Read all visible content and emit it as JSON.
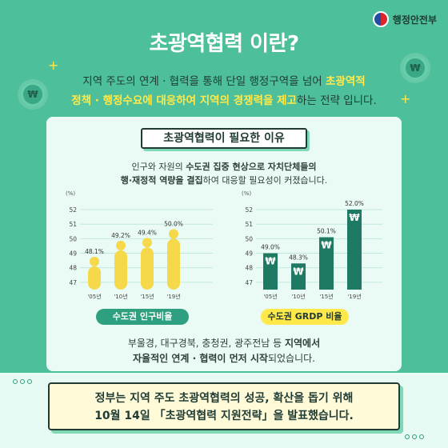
{
  "header": {
    "ministry": "행정안전부",
    "title": "초광역협력 이란?"
  },
  "intro": {
    "line1_a": "지역 주도의 연계 · 협력을 통해 단일 행정구역을 넘어 ",
    "line1_hl": "초광역적",
    "line2_hl1": "정책 · 행정수요에 대응하여 지역의 경쟁력을 제고",
    "line2_b": "하는 전략 입니다."
  },
  "card": {
    "title": "초광역협력이 필요한 이유",
    "desc_line1_a": "인구와 자원의 ",
    "desc_line1_b": "수도권 집중 현상으로 자치단체들의",
    "desc_line2_b": "행·재정적 역량을 결집",
    "desc_line2_c": "하여 대응할 필요성이 커졌습니다.",
    "foot_line1_a": "부울경, 대구경북, 충청권, 광주전남 등 ",
    "foot_line1_b": "지역에서",
    "foot_line2_a": "자율적인 연계 · 협력이 먼저 시작",
    "foot_line2_b": "되었습니다."
  },
  "chart_data": [
    {
      "type": "bar",
      "title": "수도권 인구비율",
      "ylabel": "(%)",
      "ylim": [
        46.5,
        52
      ],
      "yticks": [
        47,
        48,
        49,
        50,
        51,
        52
      ],
      "categories": [
        "'05년",
        "'10년",
        "'15년",
        "'19년"
      ],
      "values": [
        48.1,
        49.2,
        49.4,
        50.0
      ],
      "data_labels": [
        "48.1%",
        "49.2%",
        "49.4%",
        "50.0%"
      ],
      "color": "#f5d94a"
    },
    {
      "type": "bar",
      "title": "수도권 GRDP 비율",
      "ylabel": "(%)",
      "ylim": [
        46.5,
        52
      ],
      "yticks": [
        47,
        48,
        49,
        50,
        51,
        52
      ],
      "categories": [
        "'05년",
        "'10년",
        "'15년",
        "'19년"
      ],
      "values": [
        49.0,
        48.3,
        50.1,
        52.0
      ],
      "data_labels": [
        "49.0%",
        "48.3%",
        "50.1%",
        "52.0%"
      ],
      "color": "#1e7a63"
    }
  ],
  "conclusion": {
    "line1": "정부는 지역 주도 초광역협력의 성공, 확산을 돕기 위해",
    "line2": "10월 14일 「초광역협력 지원전략」을 발표했습니다."
  },
  "icons": {
    "won": "₩",
    "sparkle": "+"
  }
}
